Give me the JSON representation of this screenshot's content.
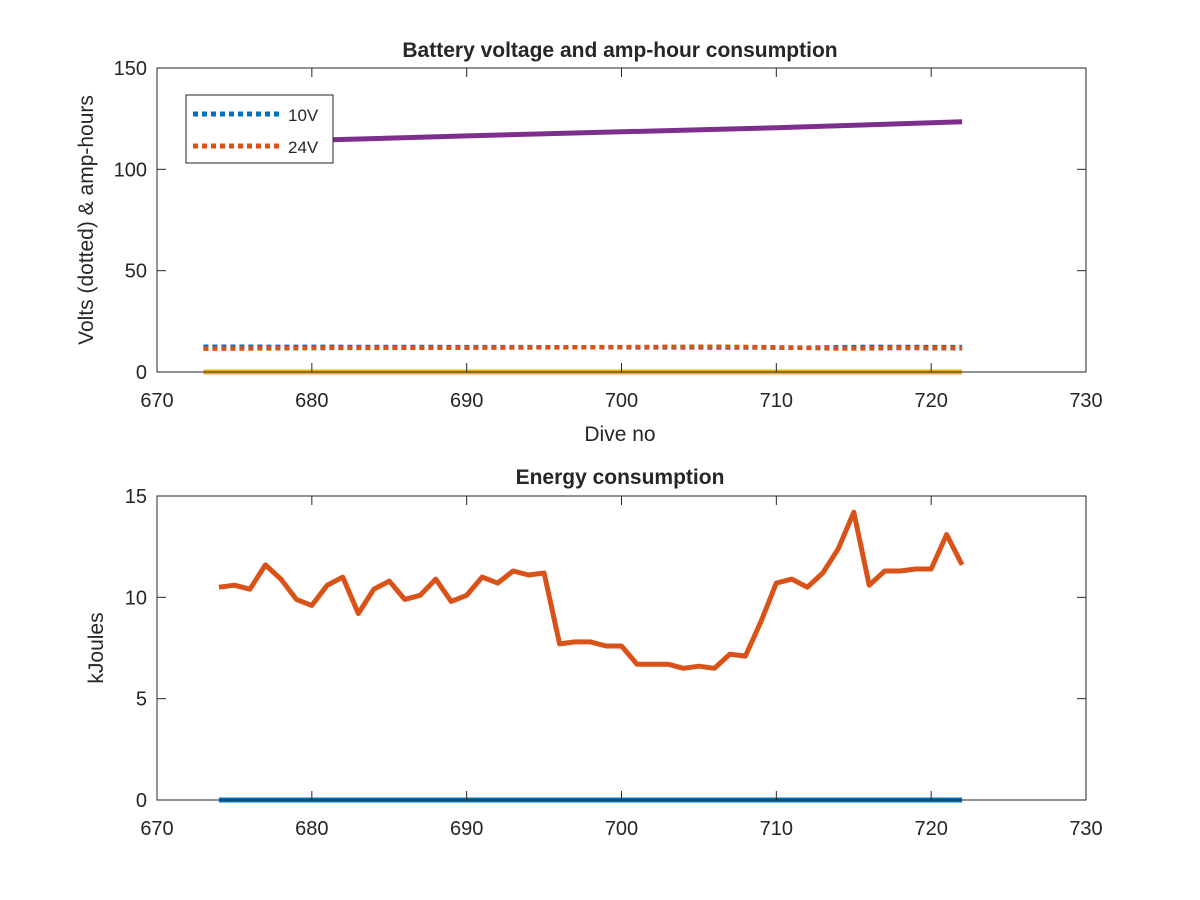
{
  "colors": {
    "background": "#ffffff",
    "axis": "#262626",
    "series_10v": "#0072BD",
    "series_24v": "#D95319",
    "series_amp_hours": "#7E2F8E",
    "series_baseline": "#EDB120",
    "energy": "#D95319",
    "energy_baseline": "#0072BD"
  },
  "chart_data": [
    {
      "type": "line",
      "title": "Battery voltage and amp-hour consumption",
      "xlabel": "Dive no",
      "ylabel": "Volts (dotted) & amp-hours",
      "xlim": [
        670,
        730
      ],
      "ylim": [
        0,
        150
      ],
      "x_ticks": [
        "670",
        "680",
        "690",
        "700",
        "710",
        "720",
        "730"
      ],
      "y_ticks": [
        "0",
        "50",
        "100",
        "150"
      ],
      "legend": {
        "placement": "top-left",
        "entries": [
          "10V",
          "24V"
        ]
      },
      "grid": false,
      "series": [
        {
          "name": "10V",
          "style": "dotted",
          "x": [
            673,
            680,
            690,
            700,
            708,
            712,
            716,
            720,
            722
          ],
          "y": [
            12.5,
            12.4,
            12.3,
            12.2,
            12.1,
            12.0,
            12.4,
            12.3,
            12.3
          ]
        },
        {
          "name": "24V",
          "style": "dotted",
          "x": [
            673,
            680,
            690,
            700,
            706,
            710,
            714,
            718,
            722
          ],
          "y": [
            11.5,
            11.8,
            12.0,
            12.3,
            12.5,
            12.2,
            11.6,
            11.8,
            11.7
          ]
        },
        {
          "style": "solid",
          "x": [
            673,
            681,
            690,
            700,
            710,
            722
          ],
          "y": [
            113,
            114.5,
            116.5,
            118.5,
            120.5,
            123.5
          ]
        },
        {
          "style": "solid",
          "x": [
            673,
            722
          ],
          "y": [
            0,
            0
          ]
        }
      ]
    },
    {
      "type": "line",
      "title": "Energy consumption",
      "xlabel": "",
      "ylabel": "kJoules",
      "xlim": [
        670,
        730
      ],
      "ylim": [
        0,
        15
      ],
      "x_ticks": [
        "670",
        "680",
        "690",
        "700",
        "710",
        "720",
        "730"
      ],
      "y_ticks": [
        "0",
        "5",
        "10",
        "15"
      ],
      "grid": false,
      "series": [
        {
          "style": "solid",
          "x": [
            674,
            675,
            676,
            677,
            678,
            679,
            680,
            681,
            682,
            683,
            684,
            685,
            686,
            687,
            688,
            689,
            690,
            691,
            692,
            693,
            694,
            695,
            696,
            697,
            698,
            699,
            700,
            701,
            702,
            703,
            704,
            705,
            706,
            707,
            708,
            709,
            710,
            711,
            712,
            713,
            714,
            715,
            716,
            717,
            718,
            719,
            720,
            721,
            722
          ],
          "y": [
            10.5,
            10.6,
            10.4,
            11.6,
            10.9,
            9.9,
            9.6,
            10.6,
            11.0,
            9.2,
            10.4,
            10.8,
            9.9,
            10.1,
            10.9,
            9.8,
            10.1,
            11.0,
            10.7,
            11.3,
            11.1,
            11.2,
            7.7,
            7.8,
            7.8,
            7.6,
            7.6,
            6.7,
            6.7,
            6.7,
            6.5,
            6.6,
            6.5,
            7.2,
            7.1,
            8.8,
            10.7,
            10.9,
            10.5,
            11.2,
            12.4,
            14.2,
            10.6,
            11.3,
            11.3,
            11.4,
            11.4,
            13.1,
            11.6
          ]
        },
        {
          "style": "solid",
          "x": [
            674,
            722
          ],
          "y": [
            0,
            0
          ]
        }
      ]
    }
  ]
}
